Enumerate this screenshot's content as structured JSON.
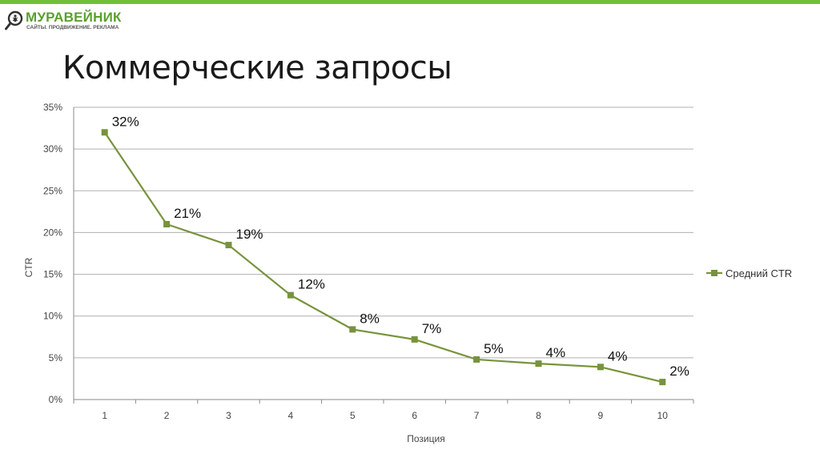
{
  "brand": {
    "name": "МУРАВЕЙНИК",
    "tagline": "САЙТЫ. ПРОДВИЖЕНИЕ. РЕКЛАМА",
    "logo_icon": "ant-in-magnifier-icon"
  },
  "slide": {
    "title": "Коммерческие запросы"
  },
  "colors": {
    "accent_bar": "#6fbf3a",
    "series": "#77933c",
    "grid": "#b0b0b0"
  },
  "chart_data": {
    "type": "line",
    "title": "",
    "xlabel": "Позиция",
    "ylabel": "CTR",
    "x": [
      1,
      2,
      3,
      4,
      5,
      6,
      7,
      8,
      9,
      10
    ],
    "ylim": [
      0,
      0.35
    ],
    "yticks": [
      "0%",
      "5%",
      "10%",
      "15%",
      "20%",
      "25%",
      "30%",
      "35%"
    ],
    "grid": true,
    "legend_position": "right",
    "series": [
      {
        "name": "Средний CTR",
        "values": [
          0.32,
          0.21,
          0.185,
          0.125,
          0.084,
          0.072,
          0.048,
          0.043,
          0.039,
          0.021
        ],
        "labels": [
          "32%",
          "21%",
          "19%",
          "12%",
          "8%",
          "7%",
          "5%",
          "4%",
          "4%",
          "2%"
        ]
      }
    ]
  }
}
